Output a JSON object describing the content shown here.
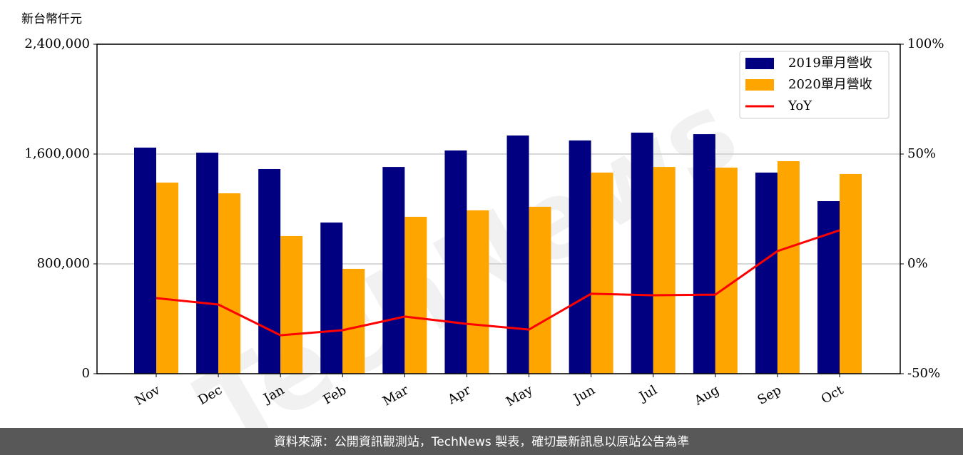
{
  "chart_data": {
    "type": "bar_line",
    "ylabel": "新台幣仟元",
    "categories": [
      "Nov",
      "Dec",
      "Jan",
      "Feb",
      "Mar",
      "Apr",
      "May",
      "Jun",
      "Jul",
      "Aug",
      "Sep",
      "Oct"
    ],
    "series": [
      {
        "name": "2019單月營收",
        "color": "#000080",
        "type": "bar",
        "values": [
          1647000,
          1610000,
          1491000,
          1101000,
          1506000,
          1626000,
          1735000,
          1699000,
          1756000,
          1745000,
          1465000,
          1257000
        ]
      },
      {
        "name": "2020單月營收",
        "color": "#ffa500",
        "type": "bar",
        "values": [
          1392000,
          1314000,
          1003000,
          764000,
          1143000,
          1190000,
          1216000,
          1465000,
          1506000,
          1501000,
          1548000,
          1455000
        ]
      },
      {
        "name": "YoY",
        "color": "#ff0000",
        "type": "line",
        "axis": "y2",
        "values": [
          -15.6,
          -18.5,
          -32.5,
          -30.2,
          -24.0,
          -27.3,
          -29.9,
          -13.6,
          -14.3,
          -14.0,
          5.8,
          15.3
        ]
      }
    ],
    "ylim": [
      0,
      2400000
    ],
    "yticks": [
      0,
      {
        "value": 800000,
        "label": "800,000"
      },
      {
        "value": 1600000,
        "label": "1,600,000"
      },
      {
        "value": 2400000,
        "label": "2,400,000"
      }
    ],
    "y2lim": [
      -50,
      100
    ],
    "y2ticks": [
      {
        "value": -50,
        "label": "-50%"
      },
      {
        "value": 0,
        "label": "0%"
      },
      {
        "value": 50,
        "label": "50%"
      },
      {
        "value": 100,
        "label": "100%"
      }
    ],
    "grid": true,
    "legend": "upper right",
    "watermark": "TechNews",
    "footer": "資料來源：公開資訊觀測站，TechNews 製表，確切最新訊息以原站公告為準"
  }
}
